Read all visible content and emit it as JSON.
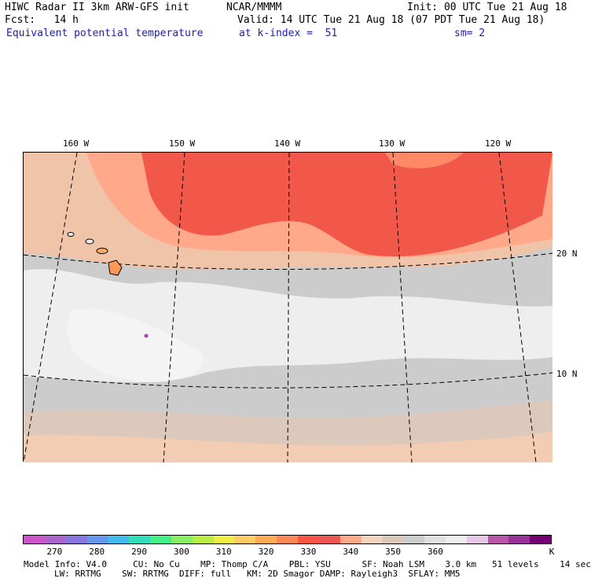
{
  "header": {
    "model": "HIWC Radar II 3km ARW-GFS init",
    "org": "NCAR/MMMM",
    "init": "Init: 00 UTC Tue 21 Aug 18",
    "fcst": "Fcst:   14 h",
    "valid": "Valid: 14 UTC Tue 21 Aug 18 (07 PDT Tue 21 Aug 18)",
    "field": "Equivalent potential temperature",
    "level": "at k-index =  51",
    "smooth": "sm= 2"
  },
  "map": {
    "lon_labels": [
      "160 W",
      "150 W",
      "140 W",
      "130 W",
      "120 W"
    ],
    "lat_labels": [
      "20 N",
      "10 N"
    ]
  },
  "colorbar": {
    "colors": [
      "#cc55cc",
      "#aa66cc",
      "#8877dd",
      "#6699ee",
      "#44bbee",
      "#33ddbb",
      "#44ee88",
      "#88ee66",
      "#bbee44",
      "#eeee44",
      "#ffcc66",
      "#ffaa55",
      "#ff8855",
      "#ff5544",
      "#ee5555",
      "#ffaa88",
      "#f5d5c0",
      "#ddc8bc",
      "#cccccc",
      "#e0e0e0",
      "#eeeeee",
      "#e6c8e6",
      "#bb55aa",
      "#993399",
      "#770077"
    ],
    "tick_labels": [
      "270",
      "280",
      "290",
      "300",
      "310",
      "320",
      "330",
      "340",
      "350",
      "360",
      "K"
    ]
  },
  "footer": {
    "line1": "Model Info: V4.0     CU: No Cu    MP: Thomp C/A    PBL: YSU      SF: Noah LSM    3.0 km   51 levels    14 sec",
    "line2": "LW: RRTMG    SW: RRTMG  DIFF: full   KM: 2D Smagor DAMP: Rayleigh3  SFLAY: MM5"
  }
}
